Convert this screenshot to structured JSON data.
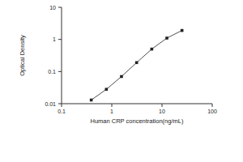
{
  "chart_data": {
    "type": "line",
    "x_label": "Human CRP concentration(ng/mL)",
    "y_label": "Optical Density",
    "x": [
      0.39,
      0.78,
      1.56,
      3.125,
      6.25,
      12.5,
      25
    ],
    "values": [
      0.013,
      0.028,
      0.07,
      0.19,
      0.5,
      1.1,
      1.9
    ],
    "color": "#222222",
    "marker": "square",
    "line_style": "solid",
    "log": true,
    "grid": false,
    "xlim": [
      0.1,
      100
    ],
    "xticks": [
      0.1,
      1,
      10,
      100
    ],
    "ylim": [
      0.01,
      10
    ],
    "yticks": [
      0.01,
      0.1,
      1,
      10
    ]
  }
}
